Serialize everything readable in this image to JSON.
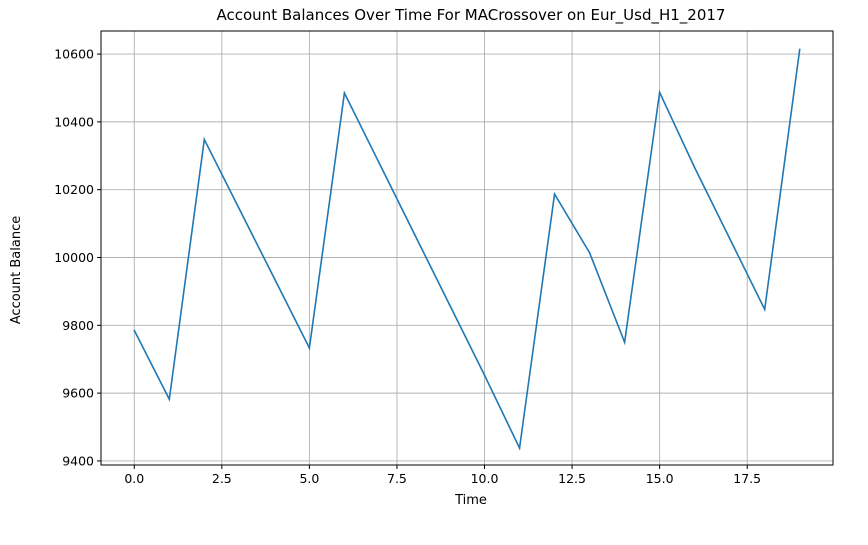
{
  "chart_data": {
    "type": "line",
    "title": "Account Balances Over Time For MACrossover on Eur_Usd_H1_2017",
    "xlabel": "Time",
    "ylabel": "Account Balance",
    "x": [
      0,
      1,
      2,
      3,
      4,
      5,
      6,
      7,
      8,
      9,
      10,
      11,
      12,
      13,
      14,
      15,
      16,
      17,
      18,
      19
    ],
    "series": [
      {
        "values": [
          9785,
          9582,
          10348,
          10143,
          9938,
          9733,
          10485,
          10277,
          10069,
          9861,
          9653,
          9438,
          10187,
          10014,
          9750,
          10487,
          10265,
          10056,
          9847,
          10614
        ],
        "color": "#1f77b4"
      }
    ],
    "xlim": [
      -0.95,
      19.95
    ],
    "ylim": [
      9388,
      10668
    ],
    "xticks": [
      0.0,
      2.5,
      5.0,
      7.5,
      10.0,
      12.5,
      15.0,
      17.5
    ],
    "xtick_labels": [
      "0.0",
      "2.5",
      "5.0",
      "7.5",
      "10.0",
      "12.5",
      "15.0",
      "17.5"
    ],
    "yticks": [
      9400,
      9600,
      9800,
      10000,
      10200,
      10400,
      10600
    ],
    "ytick_labels": [
      "9400",
      "9600",
      "9800",
      "10000",
      "10200",
      "10400",
      "10600"
    ],
    "grid": true,
    "legend": "none"
  }
}
